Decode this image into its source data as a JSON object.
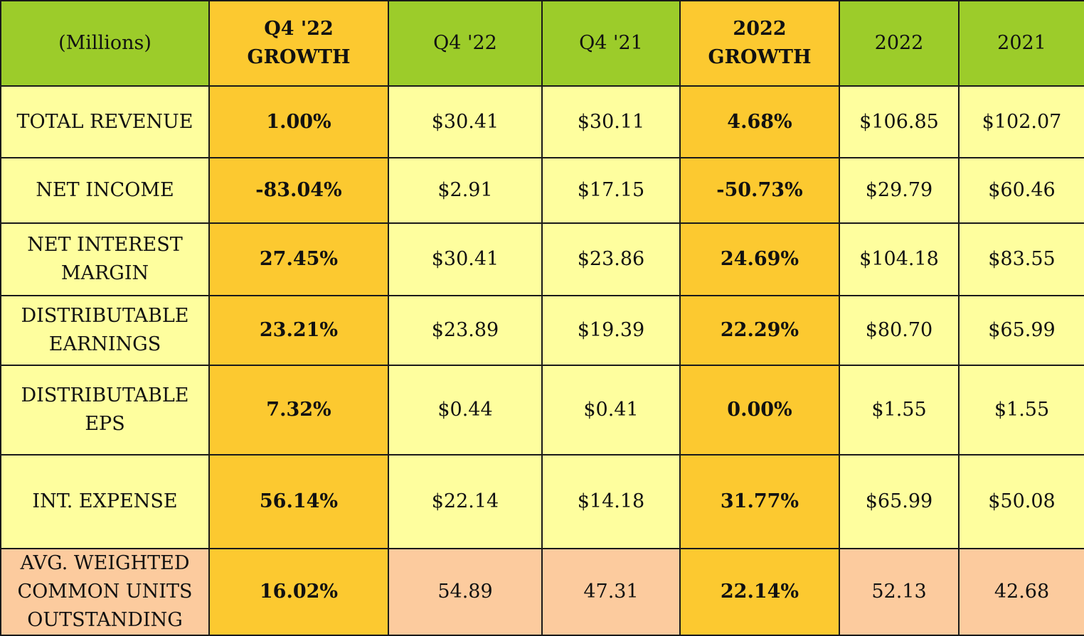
{
  "colors": {
    "header_bg": "#9ccc2a",
    "growth_col_bg": "#fcc930",
    "row_bg": "#fefe9e",
    "last_row_bg": "#fccb9e",
    "border": "#1a1a1a"
  },
  "chart_data": {
    "type": "table",
    "headers": [
      "(Millions)",
      "Q4 '22\nGROWTH",
      "Q4 '22",
      "Q4 '21",
      "2022\nGROWTH",
      "2022",
      "2021"
    ],
    "rows": [
      [
        "TOTAL REVENUE",
        "1.00%",
        "$30.41",
        "$30.11",
        "4.68%",
        "$106.85",
        "$102.07"
      ],
      [
        "NET INCOME",
        "-83.04%",
        "$2.91",
        "$17.15",
        "-50.73%",
        "$29.79",
        "$60.46"
      ],
      [
        "NET INTEREST\nMARGIN",
        "27.45%",
        "$30.41",
        "$23.86",
        "24.69%",
        "$104.18",
        "$83.55"
      ],
      [
        "DISTRIBUTABLE\nEARNINGS",
        "23.21%",
        "$23.89",
        "$19.39",
        "22.29%",
        "$80.70",
        "$65.99"
      ],
      [
        "DISTRIBUTABLE\nEPS",
        "7.32%",
        "$0.44",
        "$0.41",
        "0.00%",
        "$1.55",
        "$1.55"
      ],
      [
        "INT. EXPENSE",
        "56.14%",
        "$22.14",
        "$14.18",
        "31.77%",
        "$65.99",
        "$50.08"
      ],
      [
        "AVG. WEIGHTED\nCOMMON UNITS\nOUTSTANDING",
        "16.02%",
        "54.89",
        "47.31",
        "22.14%",
        "52.13",
        "42.68"
      ]
    ]
  }
}
